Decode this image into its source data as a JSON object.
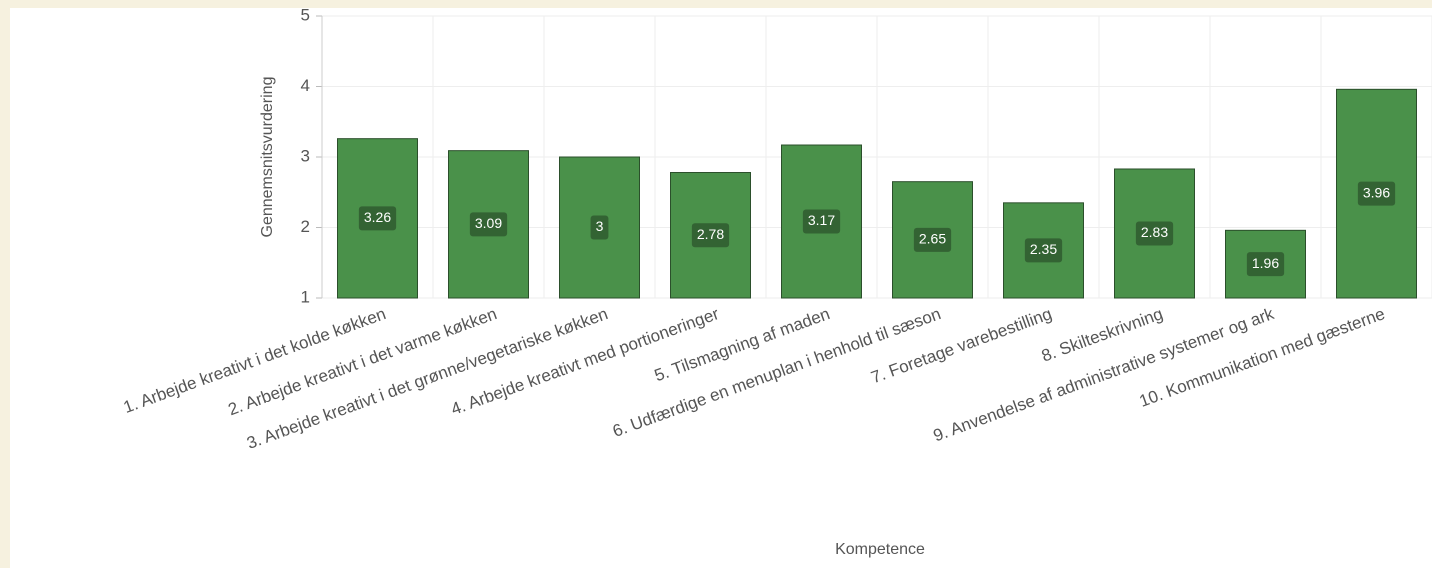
{
  "chart_data": {
    "type": "bar",
    "x_label": "Kompetence",
    "y_label": "Gennemsnitsvurdering",
    "categories": [
      "1. Arbejde kreativt i det kolde køkken",
      "2. Arbejde kreativt i det varme køkken",
      "3. Arbejde kreativt i det grønne/vegetariske køkken",
      "4. Arbejde kreativt med portioneringer",
      "5. Tilsmagning af maden",
      "6. Udfærdige en menuplan i henhold til sæson",
      "7. Foretage varebestilling",
      "8. Skilteskrivning",
      "9. Anvendelse af administrative systemer og ark",
      "10. Kommunikation med gæsterne"
    ],
    "values": [
      3.26,
      3.09,
      3,
      2.78,
      3.17,
      2.65,
      2.35,
      2.83,
      1.96,
      3.96
    ],
    "color": "#4a914a",
    "ylim": [
      1,
      5
    ],
    "yticks": [
      1,
      2,
      3,
      4,
      5
    ],
    "grid": true
  }
}
